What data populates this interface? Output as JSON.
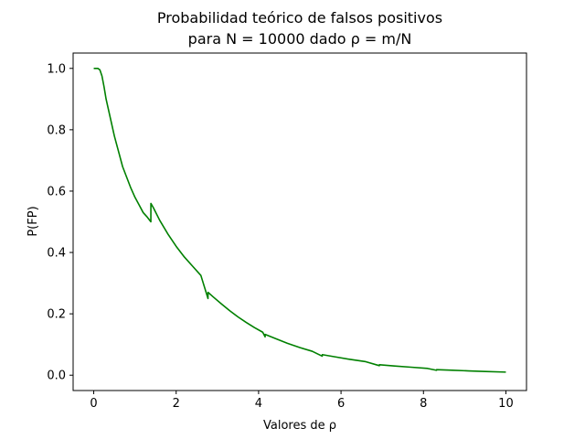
{
  "chart_data": {
    "type": "line",
    "title_line1": "Probabilidad teórico de falsos positivos",
    "title_line2": "para N = 10000 dado ρ = m/N",
    "xlabel": "Valores de ρ",
    "ylabel": "P(FP)",
    "xlim": [
      -0.5,
      10.5
    ],
    "ylim": [
      -0.05,
      1.05
    ],
    "xticks": [
      0,
      2,
      4,
      6,
      8,
      10
    ],
    "xtick_labels": [
      "0",
      "2",
      "4",
      "6",
      "8",
      "10"
    ],
    "yticks": [
      0.0,
      0.2,
      0.4,
      0.6,
      0.8,
      1.0
    ],
    "ytick_labels": [
      "0.0",
      "0.2",
      "0.4",
      "0.6",
      "0.8",
      "1.0"
    ],
    "grid": false,
    "series": [
      {
        "color": "#008000",
        "x": [
          0.0,
          0.1,
          0.15,
          0.2,
          0.25,
          0.3,
          0.4,
          0.5,
          0.6,
          0.7,
          0.8,
          0.9,
          1.0,
          1.1,
          1.2,
          1.3,
          1.386,
          1.387,
          1.45,
          1.6,
          1.8,
          2.0,
          2.2,
          2.4,
          2.6,
          2.772,
          2.773,
          2.9,
          3.1,
          3.3,
          3.5,
          3.7,
          3.9,
          4.1,
          4.158,
          4.159,
          4.4,
          4.7,
          5.0,
          5.3,
          5.544,
          5.545,
          5.8,
          6.2,
          6.6,
          6.93,
          6.931,
          7.3,
          7.7,
          8.1,
          8.317,
          8.318,
          8.7,
          9.1,
          9.5,
          10.0
        ],
        "y": [
          1.0,
          1.0,
          0.995,
          0.975,
          0.94,
          0.9,
          0.84,
          0.78,
          0.73,
          0.68,
          0.645,
          0.61,
          0.58,
          0.555,
          0.53,
          0.515,
          0.5,
          0.56,
          0.545,
          0.505,
          0.46,
          0.42,
          0.385,
          0.355,
          0.325,
          0.25,
          0.27,
          0.255,
          0.232,
          0.21,
          0.19,
          0.172,
          0.155,
          0.14,
          0.125,
          0.133,
          0.12,
          0.104,
          0.09,
          0.078,
          0.062,
          0.067,
          0.061,
          0.052,
          0.044,
          0.031,
          0.034,
          0.03,
          0.026,
          0.022,
          0.016,
          0.018,
          0.016,
          0.014,
          0.012,
          0.01
        ]
      }
    ]
  }
}
